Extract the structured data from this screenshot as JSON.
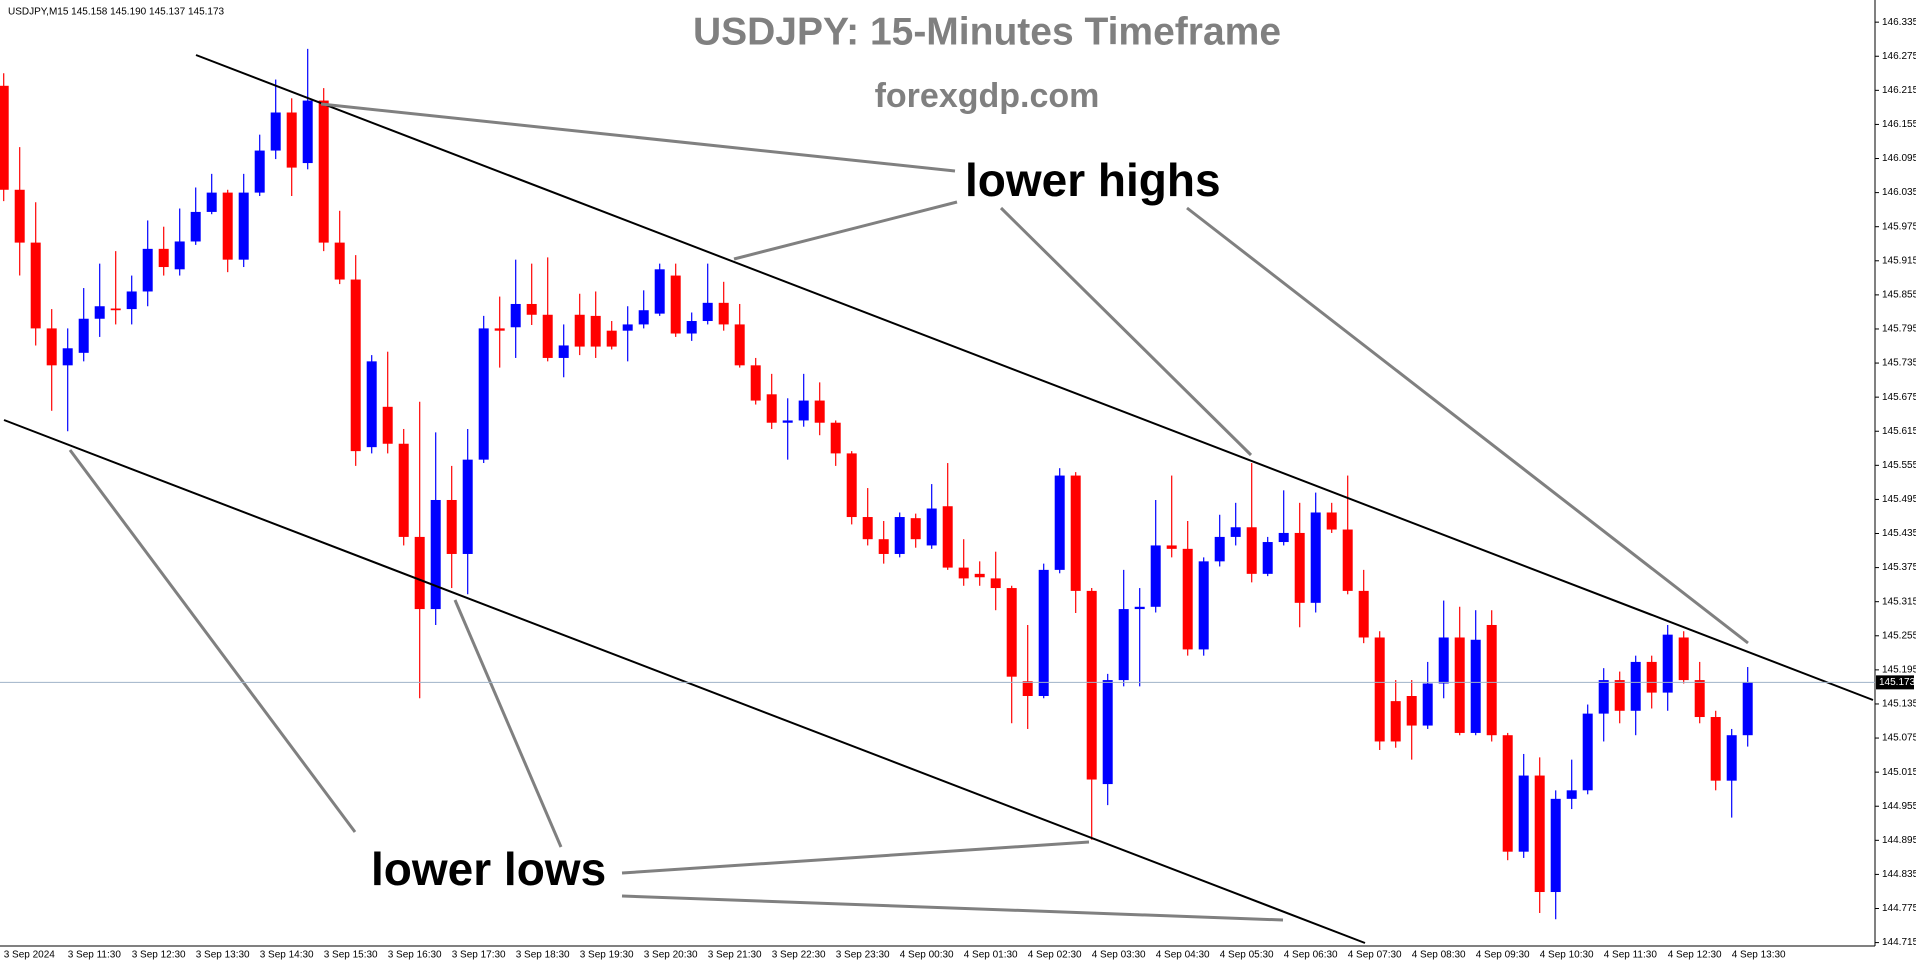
{
  "chart_data": {
    "type": "candlestick",
    "header": "USDJPY,M15  145.158 145.190 145.137 145.173",
    "title": "USDJPY: 15-Minutes Timeframe",
    "subtitle": "forexgdp.com",
    "annotations": [
      "lower highs",
      "lower lows"
    ],
    "up_color": "#0000ff",
    "down_color": "#ff0000",
    "current_price": 145.173,
    "ylim": [
      144.709,
      146.374
    ],
    "yticks": [
      146.335,
      146.275,
      146.215,
      146.155,
      146.095,
      146.035,
      145.975,
      145.915,
      145.855,
      145.795,
      145.735,
      145.675,
      145.615,
      145.555,
      145.495,
      145.435,
      145.375,
      145.315,
      145.255,
      145.195,
      145.135,
      145.075,
      145.015,
      144.955,
      144.895,
      144.835,
      144.775,
      144.715
    ],
    "categories": [
      "3 Sep 2024",
      null,
      null,
      null,
      "3 Sep 11:30",
      null,
      null,
      null,
      "3 Sep 12:30",
      null,
      null,
      null,
      "3 Sep 13:30",
      null,
      null,
      null,
      "3 Sep 14:30",
      null,
      null,
      null,
      "3 Sep 15:30",
      null,
      null,
      null,
      "3 Sep 16:30",
      null,
      null,
      null,
      "3 Sep 17:30",
      null,
      null,
      null,
      "3 Sep 18:30",
      null,
      null,
      null,
      "3 Sep 19:30",
      null,
      null,
      null,
      "3 Sep 20:30",
      null,
      null,
      null,
      "3 Sep 21:30",
      null,
      null,
      null,
      "3 Sep 22:30",
      null,
      null,
      null,
      "3 Sep 23:30",
      null,
      null,
      null,
      "4 Sep 00:30",
      null,
      null,
      null,
      "4 Sep 01:30",
      null,
      null,
      null,
      "4 Sep 02:30",
      null,
      null,
      null,
      "4 Sep 03:30",
      null,
      null,
      null,
      "4 Sep 04:30",
      null,
      null,
      null,
      "4 Sep 05:30",
      null,
      null,
      null,
      "4 Sep 06:30",
      null,
      null,
      null,
      "4 Sep 07:30",
      null,
      null,
      null,
      "4 Sep 08:30",
      null,
      null,
      null,
      "4 Sep 09:30",
      null,
      null,
      null,
      "4 Sep 10:30",
      null,
      null,
      null,
      "4 Sep 11:30",
      null,
      null,
      null,
      "4 Sep 12:30",
      null,
      null,
      null,
      "4 Sep 13:30",
      null
    ],
    "open": [
      146.223,
      146.04,
      145.947,
      145.796,
      145.731,
      145.753,
      145.813,
      145.831,
      145.83,
      145.861,
      145.936,
      145.9,
      145.949,
      146.001,
      146.035,
      145.917,
      146.035,
      146.109,
      146.176,
      146.087,
      146.197,
      145.947,
      145.882,
      145.587,
      145.658,
      145.593,
      145.429,
      145.302,
      145.494,
      145.399,
      145.565,
      145.796,
      145.798,
      145.839,
      145.82,
      145.744,
      145.82,
      145.818,
      145.792,
      145.792,
      145.803,
      145.822,
      145.889,
      145.787,
      145.809,
      145.841,
      145.803,
      145.731,
      145.68,
      145.63,
      145.634,
      145.669,
      145.63,
      145.576,
      145.464,
      145.425,
      145.399,
      145.462,
      145.414,
      145.483,
      145.375,
      145.364,
      145.356,
      145.339,
      145.175,
      145.149,
      145.371,
      145.537,
      145.334,
      144.994,
      145.177,
      145.302,
      145.306,
      145.414,
      145.408,
      145.231,
      145.386,
      145.429,
      145.446,
      145.364,
      145.42,
      145.436,
      145.313,
      145.472,
      145.442,
      145.334,
      145.252,
      145.14,
      145.149,
      145.097,
      145.171,
      145.252,
      145.084,
      145.274,
      145.08,
      144.875,
      145.009,
      144.804,
      144.968,
      144.983,
      145.118,
      145.177,
      145.123,
      145.209,
      145.155,
      145.252,
      145.177,
      145.112,
      145.0,
      145.08
    ],
    "high": [
      146.245,
      146.115,
      146.018,
      145.83,
      145.796,
      145.867,
      145.91,
      145.932,
      145.889,
      145.986,
      145.975,
      146.007,
      146.044,
      146.068,
      146.04,
      146.068,
      146.137,
      146.234,
      146.201,
      146.288,
      146.219,
      146.003,
      145.925,
      145.749,
      145.755,
      145.619,
      145.667,
      145.613,
      145.554,
      145.619,
      145.818,
      145.852,
      145.917,
      145.91,
      145.921,
      145.803,
      145.857,
      145.861,
      145.809,
      145.835,
      145.863,
      145.91,
      145.91,
      145.824,
      145.91,
      145.878,
      145.839,
      145.744,
      145.716,
      145.673,
      145.716,
      145.701,
      145.634,
      145.58,
      145.515,
      145.457,
      145.472,
      145.47,
      145.522,
      145.559,
      145.425,
      145.386,
      145.403,
      145.343,
      145.274,
      145.382,
      145.55,
      145.543,
      145.339,
      145.188,
      145.371,
      145.339,
      145.494,
      145.537,
      145.457,
      145.393,
      145.468,
      145.489,
      145.559,
      145.429,
      145.511,
      145.489,
      145.507,
      145.489,
      145.537,
      145.371,
      145.263,
      145.177,
      145.177,
      145.209,
      145.317,
      145.306,
      145.3,
      145.3,
      145.084,
      145.047,
      145.041,
      144.983,
      145.037,
      145.134,
      145.198,
      145.192,
      145.22,
      145.22,
      145.274,
      145.263,
      145.209,
      145.123,
      145.091,
      145.2
    ],
    "low": [
      146.02,
      145.889,
      145.766,
      145.651,
      145.615,
      145.738,
      145.781,
      145.803,
      145.803,
      145.835,
      145.889,
      145.889,
      145.943,
      145.997,
      145.895,
      145.904,
      146.029,
      146.094,
      146.029,
      146.076,
      145.932,
      145.874,
      145.554,
      145.576,
      145.576,
      145.414,
      145.145,
      145.274,
      145.339,
      145.328,
      145.559,
      145.727,
      145.744,
      145.802,
      145.738,
      145.71,
      145.749,
      145.744,
      145.759,
      145.738,
      145.796,
      145.818,
      145.781,
      145.774,
      145.803,
      145.792,
      145.727,
      145.662,
      145.619,
      145.565,
      145.623,
      145.608,
      145.554,
      145.451,
      145.414,
      145.382,
      145.393,
      145.41,
      145.408,
      145.371,
      145.343,
      145.343,
      145.3,
      145.101,
      145.091,
      145.145,
      145.365,
      145.295,
      144.896,
      144.957,
      145.166,
      145.166,
      145.296,
      145.393,
      145.22,
      145.22,
      145.377,
      145.414,
      145.349,
      145.36,
      145.414,
      145.27,
      145.296,
      145.436,
      145.328,
      145.242,
      145.054,
      145.058,
      145.037,
      145.091,
      145.145,
      145.08,
      145.08,
      145.069,
      144.86,
      144.864,
      144.767,
      144.756,
      144.95,
      144.976,
      145.069,
      145.101,
      145.08,
      145.127,
      145.123,
      145.171,
      145.101,
      144.983,
      144.935,
      145.06
    ],
    "close": [
      146.04,
      145.947,
      145.796,
      145.731,
      145.761,
      145.813,
      145.835,
      145.828,
      145.861,
      145.936,
      145.904,
      145.949,
      146.001,
      146.035,
      145.917,
      146.035,
      146.109,
      146.176,
      146.079,
      146.197,
      145.947,
      145.882,
      145.58,
      145.738,
      145.593,
      145.429,
      145.302,
      145.494,
      145.399,
      145.565,
      145.796,
      145.792,
      145.839,
      145.82,
      145.744,
      145.766,
      145.764,
      145.764,
      145.764,
      145.803,
      145.828,
      145.9,
      145.787,
      145.809,
      145.841,
      145.803,
      145.731,
      145.669,
      145.63,
      145.634,
      145.669,
      145.63,
      145.576,
      145.464,
      145.425,
      145.399,
      145.464,
      145.425,
      145.479,
      145.375,
      145.356,
      145.358,
      145.339,
      145.183,
      145.149,
      145.371,
      145.537,
      145.334,
      145.002,
      145.177,
      145.302,
      145.306,
      145.414,
      145.408,
      145.231,
      145.386,
      145.429,
      145.446,
      145.364,
      145.42,
      145.436,
      145.313,
      145.472,
      145.442,
      145.334,
      145.252,
      145.069,
      145.069,
      145.097,
      145.171,
      145.252,
      145.084,
      145.248,
      145.08,
      144.875,
      145.009,
      144.804,
      144.968,
      144.983,
      145.118,
      145.177,
      145.123,
      145.209,
      145.155,
      145.257,
      145.177,
      145.112,
      145.0,
      145.08,
      145.173
    ]
  }
}
